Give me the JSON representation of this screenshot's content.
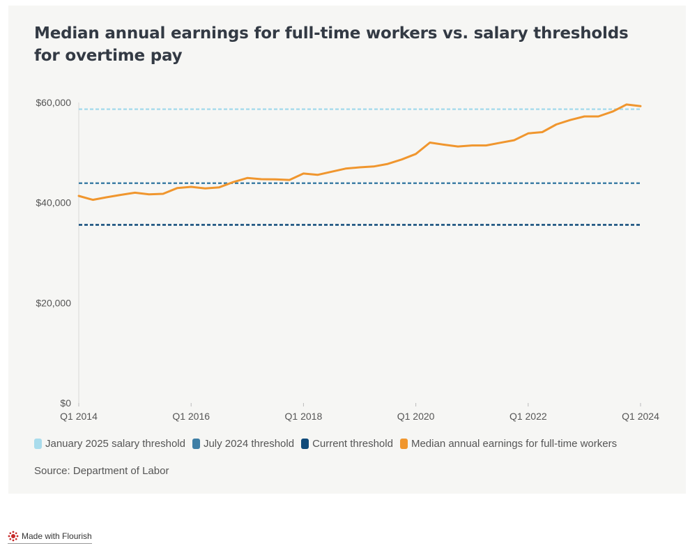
{
  "title": "Median annual earnings for full-time workers vs. salary thresholds for overtime pay",
  "source": "Source: Department of Labor",
  "branding": "Made with Flourish",
  "chart_data": {
    "type": "line",
    "title": "Median annual earnings for full-time workers vs. salary thresholds for overtime pay",
    "xlabel": "",
    "ylabel": "",
    "ylim": [
      0,
      60000
    ],
    "yticks": [
      {
        "value": 0,
        "label": "$0"
      },
      {
        "value": 20000,
        "label": "$20,000"
      },
      {
        "value": 40000,
        "label": "$40,000"
      },
      {
        "value": 60000,
        "label": "$60,000"
      }
    ],
    "xlim": [
      0,
      40
    ],
    "xticks": [
      {
        "index": 0,
        "label": "Q1 2014"
      },
      {
        "index": 8,
        "label": "Q1 2016"
      },
      {
        "index": 16,
        "label": "Q1 2018"
      },
      {
        "index": 24,
        "label": "Q1 2020"
      },
      {
        "index": 32,
        "label": "Q1 2022"
      },
      {
        "index": 40,
        "label": "Q1 2024"
      }
    ],
    "thresholds": [
      {
        "name": "January 2025 salary threshold",
        "value": 58656,
        "color": "#a9dcec"
      },
      {
        "name": "July 2024 threshold",
        "value": 43888,
        "color": "#3f7fa6"
      },
      {
        "name": "Current threshold",
        "value": 35568,
        "color": "#0f4a7a"
      }
    ],
    "series": [
      {
        "name": "Median annual earnings for full-time workers",
        "color": "#f0962e",
        "values": [
          41340,
          40560,
          41080,
          41550,
          41990,
          41650,
          41760,
          42900,
          43160,
          42850,
          43060,
          44100,
          44930,
          44690,
          44640,
          44530,
          45810,
          45550,
          46180,
          46800,
          47060,
          47220,
          47740,
          48620,
          49720,
          52000,
          51580,
          51220,
          51420,
          51430,
          51950,
          52470,
          53830,
          54080,
          55620,
          56500,
          57210,
          57220,
          58180,
          59590,
          59280
        ]
      }
    ],
    "legend_position": "bottom"
  }
}
